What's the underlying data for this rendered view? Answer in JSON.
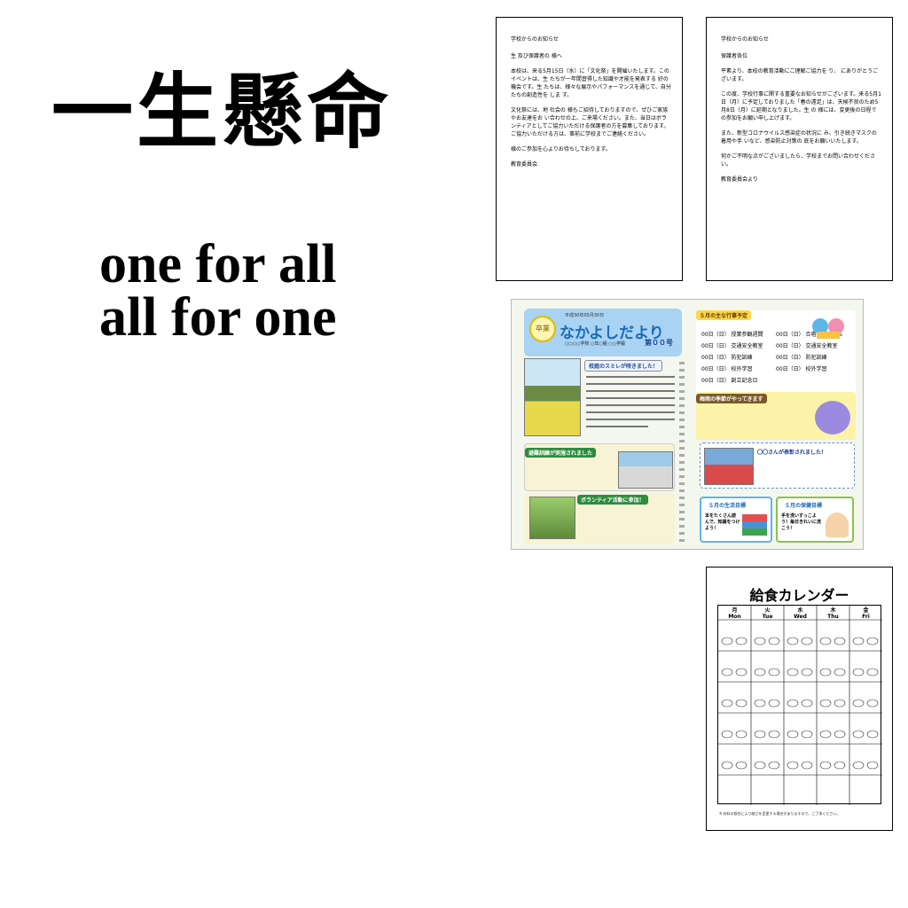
{
  "headline": {
    "kanji": "一生懸命"
  },
  "slogan": {
    "line1": "one for all",
    "line2": "all for one"
  },
  "letter1": {
    "header": "学校からのお知らせ",
    "greeting": "生 及び保護者の 様へ",
    "body1": "本校は、来る5月15日（水）に「文化祭」を開催いたします。このイベントは、生 たちが一年間習得した知識や才能を発表する 好の機会です。生 たちは、様々な展示やパフォーマンスを通じて、自分たちの創造性を しま す。",
    "body2": "文化祭には、地 社会の 様もご招待しておりますので、ぜひご家族やお友達をお い合わせの上、ご来場ください。また、当日はボランティアとしてご協力いただける保護者の方を募集しております。ご協力いただける方は、事前に学校までご連絡ください。",
    "body3": "様のご参加を心よりお待ちしております。",
    "sign": "教育委員会"
  },
  "letter2": {
    "header": "学校からのお知らせ",
    "greeting": "保護者各位",
    "body1": "平素より、本校の教育活動にご理解ご協力を り、 にありがとうございます。",
    "body2": "この度、学校行事に関する重要なお知らせがございます。来る5月1日（月）に予定しておりました「春の遠足」は、天候不良のため5月8日（月）に延期となりました。生 の 様には、変更後の日程での参加をお願い申し上げます。",
    "body3": "また、新型コロナウイルス感染症の状況に み、引き続きマスクの着用や手 いなど、感染防止対策の 底をお願いいたします。",
    "body4": "何かご不明な点がございましたら、学校までお問い合わせください。",
    "sign": "教育委員会より"
  },
  "newsletter": {
    "date": "平成30年05月30日",
    "title": "なかよしだより",
    "school": "○○○○学校 ○年○組 ○○学級",
    "issue": "第００号",
    "badge": "卒業",
    "events_title": "５月の主な行事予定",
    "events": [
      {
        "date": "00日（日）",
        "name": "授業参観週間"
      },
      {
        "date": "00日（日）",
        "name": "交通安全教室"
      },
      {
        "date": "00日（日）",
        "name": "防犯訓練"
      },
      {
        "date": "00日（日）",
        "name": "校外学習"
      },
      {
        "date": "00日（日）",
        "name": "創立記念日"
      },
      {
        "date": "00日（日）",
        "name": "合唱コンクール"
      },
      {
        "date": "00日（日）",
        "name": "交通安全教室"
      },
      {
        "date": "00日（日）",
        "name": "防犯訓練"
      },
      {
        "date": "00日（日）",
        "name": "校外学習"
      }
    ],
    "article1_title": "校庭のスミレが咲きました！",
    "article2_title": "梅雨の季節がやってきます",
    "article3_title": "避難訓練が実施されました",
    "article4_title": "〇〇さんが表彰されました！",
    "article5_title": "ボランティア活動に参加！",
    "goal1_title": "５月の生活目標",
    "goal1_text": "本をたくさん読んで、知識をつけよう！",
    "goal2_title": "５月の保健目標",
    "goal2_text": "手を洗いすっこよう！毎日きれいに洗こう！"
  },
  "calendar": {
    "title": "給食カレンダー",
    "days": [
      "Mon",
      "Tue",
      "Wed",
      "Thu",
      "Fri"
    ],
    "days_jp": [
      "月",
      "火",
      "水",
      "木",
      "金"
    ],
    "footnote": "※ 材料の都合により献立を変更する場合がありますので、ご了承ください。"
  }
}
